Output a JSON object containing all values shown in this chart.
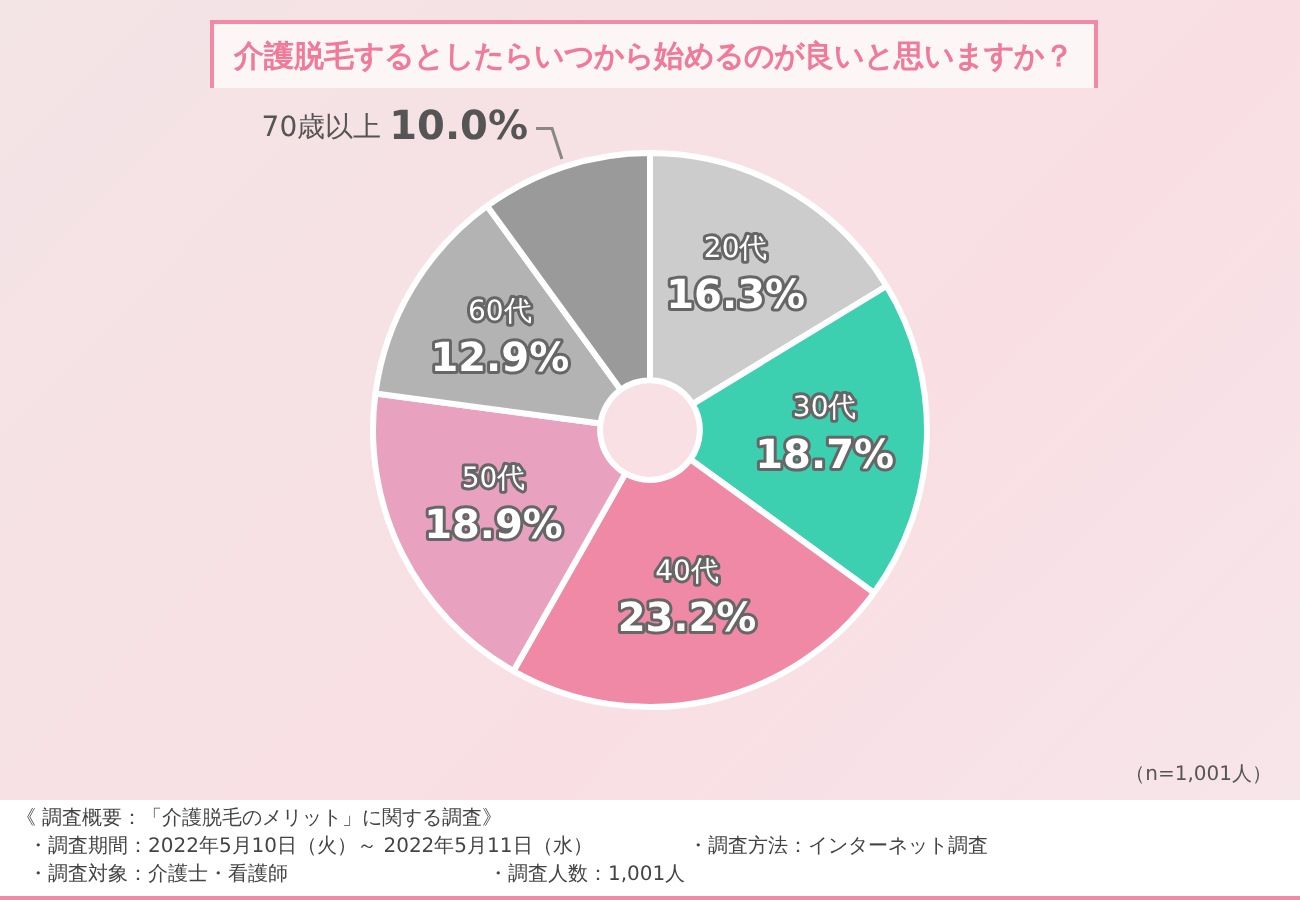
{
  "chart_data": {
    "type": "donut",
    "title": "介護脱毛するとしたらいつから始めるのが良いと思いますか？",
    "categories": [
      "20代",
      "30代",
      "40代",
      "50代",
      "60代",
      "70歳以上"
    ],
    "values": [
      16.3,
      18.7,
      23.2,
      18.9,
      12.9,
      10.0
    ],
    "value_labels": [
      "16.3%",
      "18.7%",
      "23.2%",
      "18.9%",
      "12.9%",
      "10.0%"
    ],
    "colors": [
      "#cccccc",
      "#3ccfb0",
      "#f089a6",
      "#e8a1bf",
      "#b3b3b3",
      "#9a9a9a"
    ],
    "legend": false,
    "annotations": [
      "（n=1,001人）",
      "《 調査概要：「介護脱毛のメリット」に関する調査》",
      "・調査期間：2022年5月10日（火）～ 2022年5月11日（水）",
      "・調査方法：インターネット調査",
      "・調査対象：介護士・看護師",
      "・調査人数：1,001人"
    ]
  }
}
